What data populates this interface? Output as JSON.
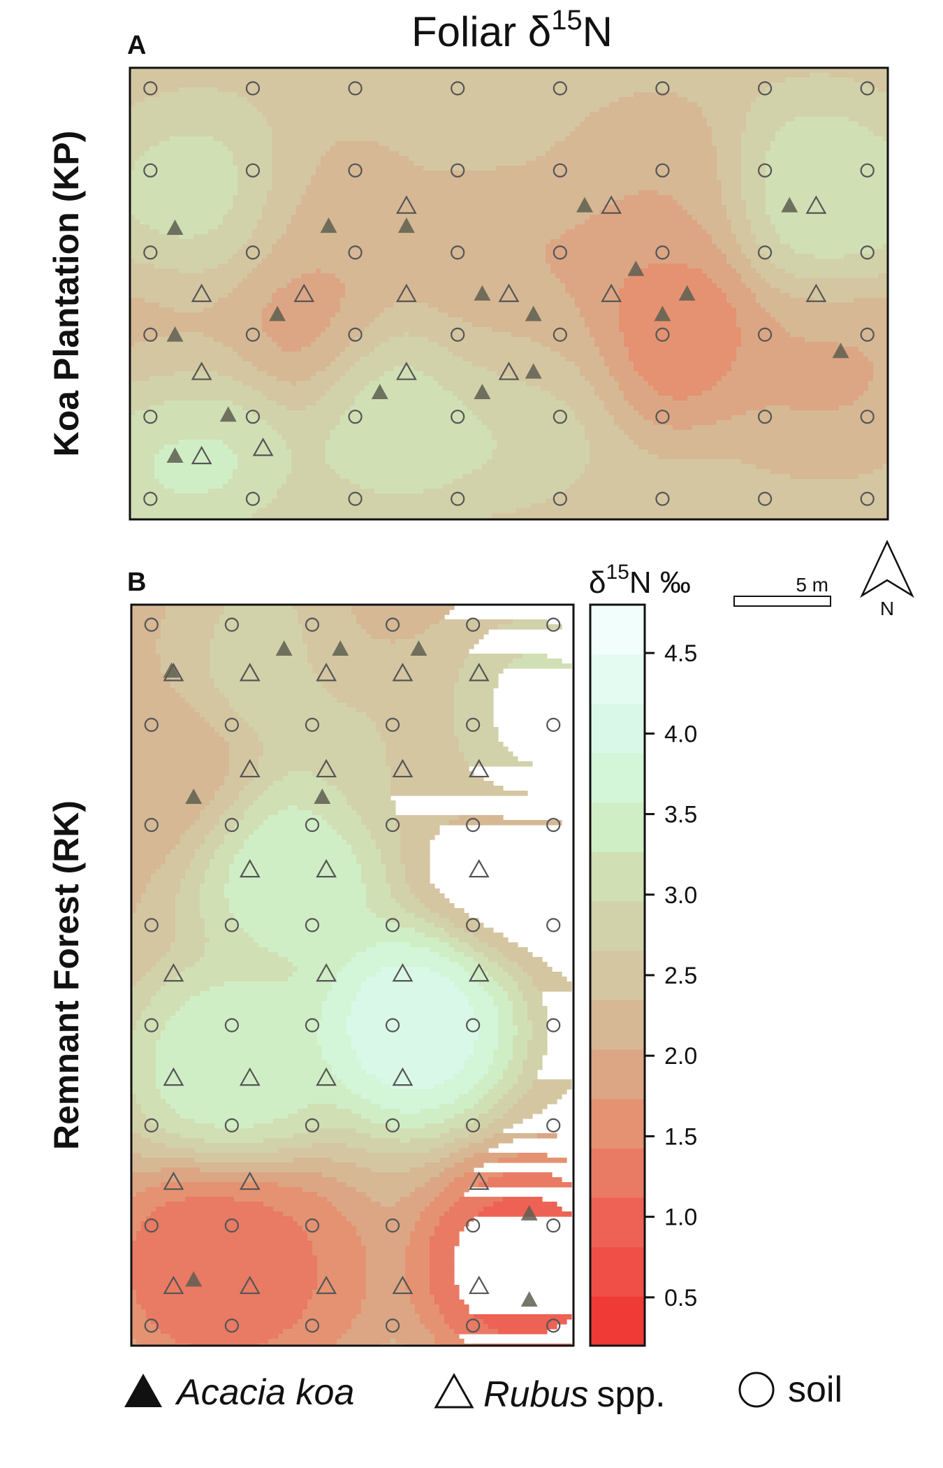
{
  "title": "Foliar δ15N",
  "panels": {
    "a": {
      "letter": "A",
      "ylabel": "Koa Plantation (KP)"
    },
    "b": {
      "letter": "B",
      "ylabel": "Remnant Forest (RK)"
    }
  },
  "colorbar": {
    "title": "δ15N ‰",
    "range": [
      0.2,
      4.8
    ],
    "ticks": [
      "0.5",
      "1.0",
      "1.5",
      "2.0",
      "2.5",
      "3.0",
      "3.5",
      "4.0",
      "4.5"
    ],
    "colors": [
      "#f03a35",
      "#ef4f47",
      "#ed6254",
      "#e97a63",
      "#e49272",
      "#dca684",
      "#d6b895",
      "#d4c6a1",
      "#d2d2aa",
      "#d1dfb5",
      "#d0eec6",
      "#d3f5d8",
      "#daf8e7",
      "#e4fbf1",
      "#f1fefb"
    ]
  },
  "scale_bar": {
    "label": "5 m"
  },
  "north_arrow": {
    "label": "N"
  },
  "legend": {
    "acacia_label": "Acacia koa",
    "rubus_label": "Rubus",
    "rubus_suffix": "spp.",
    "soil_label": "soil"
  },
  "chart_data": [
    {
      "type": "heatmap",
      "panel": "A",
      "xlim": [
        0,
        37
      ],
      "ylim": [
        0,
        22
      ],
      "background_value": 2.5,
      "surface_peaks": [
        {
          "x": 3,
          "y": 4.5,
          "value": 3.6
        },
        {
          "x": 3.5,
          "y": 14.5,
          "value": 3.3
        },
        {
          "x": 13,
          "y": 6,
          "value": 3.4
        },
        {
          "x": 18.5,
          "y": 7,
          "value": 3.2
        },
        {
          "x": 33.5,
          "y": 15,
          "value": 3.4
        },
        {
          "x": 8.5,
          "y": 10,
          "value": 1.6
        },
        {
          "x": 26.5,
          "y": 10,
          "value": 1.2
        },
        {
          "x": 17.5,
          "y": 10.5,
          "value": 1.9
        },
        {
          "x": 20,
          "y": 10,
          "value": 1.9
        },
        {
          "x": 2,
          "y": 9,
          "value": 2.0
        },
        {
          "x": 34,
          "y": 8,
          "value": 1.9
        },
        {
          "x": 26,
          "y": 15,
          "value": 2.0
        },
        {
          "x": 10,
          "y": 14,
          "value": 2.2
        }
      ],
      "soil": [
        {
          "x": 1,
          "y": 21
        },
        {
          "x": 6,
          "y": 21
        },
        {
          "x": 11,
          "y": 21
        },
        {
          "x": 16,
          "y": 21
        },
        {
          "x": 21,
          "y": 21
        },
        {
          "x": 26,
          "y": 21
        },
        {
          "x": 31,
          "y": 21
        },
        {
          "x": 36,
          "y": 21
        },
        {
          "x": 1,
          "y": 17
        },
        {
          "x": 6,
          "y": 17
        },
        {
          "x": 11,
          "y": 17
        },
        {
          "x": 16,
          "y": 17
        },
        {
          "x": 21,
          "y": 17
        },
        {
          "x": 26,
          "y": 17
        },
        {
          "x": 31,
          "y": 17
        },
        {
          "x": 36,
          "y": 17
        },
        {
          "x": 1,
          "y": 13
        },
        {
          "x": 6,
          "y": 13
        },
        {
          "x": 11,
          "y": 13
        },
        {
          "x": 16,
          "y": 13
        },
        {
          "x": 21,
          "y": 13
        },
        {
          "x": 26,
          "y": 13
        },
        {
          "x": 31,
          "y": 13
        },
        {
          "x": 36,
          "y": 13
        },
        {
          "x": 1,
          "y": 9
        },
        {
          "x": 6,
          "y": 9
        },
        {
          "x": 11,
          "y": 9
        },
        {
          "x": 16,
          "y": 9
        },
        {
          "x": 21,
          "y": 9
        },
        {
          "x": 26,
          "y": 9
        },
        {
          "x": 31,
          "y": 9
        },
        {
          "x": 36,
          "y": 9
        },
        {
          "x": 1,
          "y": 5
        },
        {
          "x": 6,
          "y": 5
        },
        {
          "x": 11,
          "y": 5
        },
        {
          "x": 16,
          "y": 5
        },
        {
          "x": 21,
          "y": 5
        },
        {
          "x": 26,
          "y": 5
        },
        {
          "x": 31,
          "y": 5
        },
        {
          "x": 36,
          "y": 5
        },
        {
          "x": 1,
          "y": 1
        },
        {
          "x": 6,
          "y": 1
        },
        {
          "x": 11,
          "y": 1
        },
        {
          "x": 16,
          "y": 1
        },
        {
          "x": 21,
          "y": 1
        },
        {
          "x": 26,
          "y": 1
        },
        {
          "x": 31,
          "y": 1
        },
        {
          "x": 36,
          "y": 1
        }
      ],
      "acacia_koa": [
        {
          "x": 2.2,
          "y": 14.2
        },
        {
          "x": 2.2,
          "y": 9
        },
        {
          "x": 4.8,
          "y": 5.1
        },
        {
          "x": 2.2,
          "y": 3.1
        },
        {
          "x": 7.2,
          "y": 10
        },
        {
          "x": 9.7,
          "y": 14.3
        },
        {
          "x": 13.5,
          "y": 14.3
        },
        {
          "x": 12.2,
          "y": 6.2
        },
        {
          "x": 17.2,
          "y": 6.2
        },
        {
          "x": 17.2,
          "y": 11
        },
        {
          "x": 19.7,
          "y": 10
        },
        {
          "x": 19.7,
          "y": 7.2
        },
        {
          "x": 22.2,
          "y": 15.3
        },
        {
          "x": 24.7,
          "y": 12.2
        },
        {
          "x": 27.2,
          "y": 11
        },
        {
          "x": 26,
          "y": 10
        },
        {
          "x": 32.2,
          "y": 15.3
        },
        {
          "x": 34.7,
          "y": 8.2
        }
      ],
      "rubus": [
        {
          "x": 3.5,
          "y": 11
        },
        {
          "x": 3.5,
          "y": 7.2
        },
        {
          "x": 3.5,
          "y": 3.1
        },
        {
          "x": 6.5,
          "y": 3.5
        },
        {
          "x": 8.5,
          "y": 11
        },
        {
          "x": 13.5,
          "y": 15.3
        },
        {
          "x": 13.5,
          "y": 11
        },
        {
          "x": 13.5,
          "y": 7.2
        },
        {
          "x": 18.5,
          "y": 11
        },
        {
          "x": 18.5,
          "y": 7.2
        },
        {
          "x": 23.5,
          "y": 15.3
        },
        {
          "x": 23.5,
          "y": 11
        },
        {
          "x": 33.5,
          "y": 15.3
        },
        {
          "x": 33.5,
          "y": 11
        }
      ]
    },
    {
      "type": "heatmap",
      "panel": "B",
      "xlim": [
        0,
        22
      ],
      "ylim": [
        0,
        37
      ],
      "background_value": 2.3,
      "surface_peaks": [
        {
          "x": 8,
          "y": 24,
          "value": 3.8
        },
        {
          "x": 14,
          "y": 16,
          "value": 4.5
        },
        {
          "x": 5,
          "y": 14,
          "value": 3.8
        },
        {
          "x": 6.5,
          "y": 35,
          "value": 3.4
        },
        {
          "x": 19.5,
          "y": 30.5,
          "value": 3.4
        },
        {
          "x": 12,
          "y": 30,
          "value": 3.2
        },
        {
          "x": 10,
          "y": 35.5,
          "value": 2.1
        },
        {
          "x": 14,
          "y": 30,
          "value": 2.1
        },
        {
          "x": 2,
          "y": 29,
          "value": 2.0
        },
        {
          "x": 2.5,
          "y": 36.5,
          "value": 2.2
        },
        {
          "x": 19,
          "y": 24.5,
          "value": 2.0
        },
        {
          "x": 19.5,
          "y": 4,
          "value": 0.6
        },
        {
          "x": 4,
          "y": 4,
          "value": 0.9
        },
        {
          "x": 7,
          "y": 3.5,
          "value": 1.3
        }
      ],
      "soil": [
        {
          "x": 1,
          "y": 36
        },
        {
          "x": 3.3,
          "y": 36
        },
        {
          "x": 5.6,
          "y": 36
        },
        {
          "x": 7.9,
          "y": 36
        },
        {
          "x": 10.2,
          "y": 36
        },
        {
          "x": 12.5,
          "y": 36
        },
        {
          "x": 1,
          "y": 31
        },
        {
          "x": 3.3,
          "y": 31
        },
        {
          "x": 5.6,
          "y": 31
        },
        {
          "x": 7.9,
          "y": 31
        },
        {
          "x": 10.2,
          "y": 31
        },
        {
          "x": 12.5,
          "y": 31
        },
        {
          "x": 1,
          "y": 26
        },
        {
          "x": 3.3,
          "y": 26
        },
        {
          "x": 5.6,
          "y": 26
        },
        {
          "x": 7.9,
          "y": 26
        },
        {
          "x": 10.2,
          "y": 26
        },
        {
          "x": 12.5,
          "y": 26
        },
        {
          "x": 1,
          "y": 21
        },
        {
          "x": 3.3,
          "y": 21
        },
        {
          "x": 5.6,
          "y": 21
        },
        {
          "x": 7.9,
          "y": 21
        },
        {
          "x": 10.2,
          "y": 21
        },
        {
          "x": 12.5,
          "y": 21
        },
        {
          "x": 1,
          "y": 16
        },
        {
          "x": 3.3,
          "y": 16
        },
        {
          "x": 5.6,
          "y": 16
        },
        {
          "x": 7.9,
          "y": 16
        },
        {
          "x": 10.2,
          "y": 16
        },
        {
          "x": 12.5,
          "y": 16
        },
        {
          "x": 1,
          "y": 11
        },
        {
          "x": 3.3,
          "y": 11
        },
        {
          "x": 5.6,
          "y": 11
        },
        {
          "x": 7.9,
          "y": 11
        },
        {
          "x": 10.2,
          "y": 11
        },
        {
          "x": 12.5,
          "y": 11
        },
        {
          "x": 1,
          "y": 6
        },
        {
          "x": 3.3,
          "y": 6
        },
        {
          "x": 5.6,
          "y": 6
        },
        {
          "x": 7.9,
          "y": 6
        },
        {
          "x": 10.2,
          "y": 6
        },
        {
          "x": 12.5,
          "y": 6
        },
        {
          "x": 1,
          "y": 1
        },
        {
          "x": 3.3,
          "y": 1
        },
        {
          "x": 5.6,
          "y": 1
        },
        {
          "x": 7.9,
          "y": 1
        },
        {
          "x": 10.2,
          "y": 1
        },
        {
          "x": 12.5,
          "y": 1
        }
      ],
      "acacia_koa": [
        {
          "x": 2.0,
          "y": 33.7
        },
        {
          "x": 7.6,
          "y": 34.8
        },
        {
          "x": 10.4,
          "y": 34.8
        },
        {
          "x": 14.3,
          "y": 34.8
        },
        {
          "x": 3.1,
          "y": 27.4
        },
        {
          "x": 9.5,
          "y": 27.4
        },
        {
          "x": 19.8,
          "y": 6.6
        },
        {
          "x": 3.1,
          "y": 3.3
        },
        {
          "x": 19.8,
          "y": 2.3
        }
      ],
      "acacia_koa_mapped": false,
      "rubus": [
        {
          "x": 3.0,
          "y": 33.6
        },
        {
          "x": 6.9,
          "y": 33.6
        },
        {
          "x": 10.8,
          "y": 33.6
        },
        {
          "x": 14.7,
          "y": 33.6
        },
        {
          "x": 18.6,
          "y": 33.6
        },
        {
          "x": 6.9,
          "y": 28.8
        },
        {
          "x": 10.8,
          "y": 28.8
        },
        {
          "x": 14.7,
          "y": 28.8
        },
        {
          "x": 18.6,
          "y": 28.8
        },
        {
          "x": 6.9,
          "y": 23.8
        },
        {
          "x": 10.8,
          "y": 23.8
        },
        {
          "x": 18.6,
          "y": 23.8
        },
        {
          "x": 3.0,
          "y": 18.6
        },
        {
          "x": 10.8,
          "y": 18.6
        },
        {
          "x": 14.7,
          "y": 18.6
        },
        {
          "x": 18.6,
          "y": 18.6
        },
        {
          "x": 3.0,
          "y": 13.4
        },
        {
          "x": 6.9,
          "y": 13.4
        },
        {
          "x": 10.8,
          "y": 13.4
        },
        {
          "x": 14.7,
          "y": 13.4
        },
        {
          "x": 3.0,
          "y": 8.2
        },
        {
          "x": 6.9,
          "y": 8.2
        },
        {
          "x": 18.6,
          "y": 8.2
        },
        {
          "x": 3.0,
          "y": 3.0
        },
        {
          "x": 6.9,
          "y": 3.0
        },
        {
          "x": 10.8,
          "y": 3.0
        },
        {
          "x": 14.7,
          "y": 3.0
        },
        {
          "x": 18.6,
          "y": 3.0
        }
      ]
    }
  ]
}
